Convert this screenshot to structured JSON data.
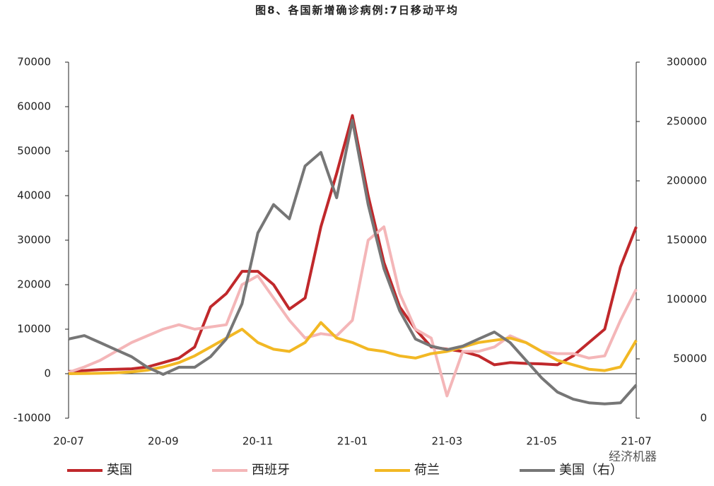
{
  "chart_data": {
    "type": "line",
    "title": "图8、各国新增确诊病例:7日移动平均",
    "watermark": "经济机器",
    "categories": [
      "20-07",
      null,
      null,
      null,
      null,
      null,
      "20-09",
      null,
      null,
      null,
      null,
      null,
      "20-11",
      null,
      null,
      null,
      null,
      null,
      "21-01",
      null,
      null,
      null,
      null,
      null,
      "21-03",
      null,
      null,
      null,
      null,
      null,
      "21-05",
      null,
      null,
      null,
      null,
      null,
      "21-07"
    ],
    "ylim": [
      -10000,
      70000
    ],
    "yticks": [
      -10000,
      0,
      10000,
      20000,
      30000,
      40000,
      50000,
      60000,
      70000
    ],
    "y2lim": [
      0,
      300000
    ],
    "y2ticks": [
      0,
      50000,
      100000,
      150000,
      200000,
      250000,
      300000
    ],
    "grid": false,
    "legend": "bottom",
    "series": [
      {
        "name": "英国",
        "color": "#c0282b",
        "values": [
          500,
          700,
          900,
          1000,
          1100,
          1500,
          2500,
          3500,
          6000,
          15000,
          18000,
          23000,
          23000,
          20000,
          14500,
          17000,
          33000,
          45000,
          58000,
          40000,
          25000,
          15000,
          10000,
          6000,
          5500,
          5000,
          4000,
          2000,
          2500,
          2300,
          2200,
          2000,
          4000,
          7000,
          10000,
          24000,
          33000
        ]
      },
      {
        "name": "西班牙",
        "color": "#f4b6b8",
        "values": [
          300,
          1500,
          3000,
          5000,
          7000,
          8500,
          10000,
          11000,
          10000,
          10500,
          11000,
          20000,
          22000,
          17000,
          12000,
          8000,
          9000,
          8500,
          12000,
          30000,
          33000,
          18000,
          10000,
          8000,
          -5000,
          5000,
          5000,
          6000,
          8500,
          7000,
          5000,
          4500,
          4500,
          3500,
          4000,
          12000,
          19000
        ]
      },
      {
        "name": "荷兰",
        "color": "#f2b824",
        "values": [
          0,
          50,
          100,
          200,
          400,
          800,
          1500,
          2500,
          4000,
          6000,
          8000,
          10000,
          7000,
          5500,
          5000,
          7000,
          11500,
          8000,
          7000,
          5500,
          5000,
          4000,
          3500,
          4500,
          5000,
          6000,
          7000,
          7500,
          8000,
          7000,
          5000,
          3000,
          2000,
          1000,
          700,
          1500,
          7500
        ]
      },
      {
        "name": "美国（右）",
        "color": "#767676",
        "axis": "y2",
        "values": [
          66700,
          69600,
          63700,
          57700,
          51800,
          42900,
          36900,
          42900,
          42900,
          51800,
          66700,
          96400,
          156000,
          180000,
          168000,
          212500,
          224000,
          185700,
          251000,
          180000,
          126000,
          90500,
          66700,
          60700,
          57700,
          60700,
          66700,
          72600,
          63700,
          48800,
          33900,
          22000,
          16000,
          13000,
          12000,
          13000,
          28000
        ]
      }
    ]
  }
}
